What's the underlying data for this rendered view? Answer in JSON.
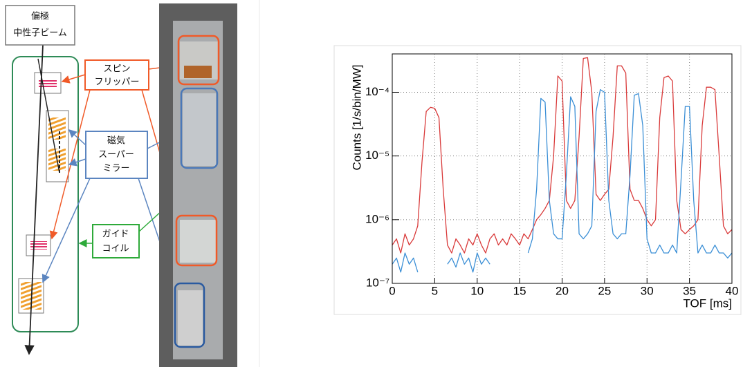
{
  "diagram": {
    "beam_label": [
      "偏極",
      "中性子ビーム"
    ],
    "spin_flipper": [
      "スピン",
      "フリッパー"
    ],
    "supermirror": [
      "磁気",
      "スーパー",
      "ミラー"
    ],
    "guide_coil": [
      "ガイド",
      "コイル"
    ]
  },
  "chart_data": {
    "type": "line",
    "x_label": "TOF [ms]",
    "y_label": "Counts [1/s/bin/MW]",
    "xlim": [
      0,
      40
    ],
    "xticks": [
      0,
      5,
      10,
      15,
      20,
      25,
      30,
      35,
      40
    ],
    "ylim": [
      1e-07,
      0.0004
    ],
    "log_y": true,
    "grid": true,
    "yticks": [
      {
        "value": 1e-07,
        "label": "10⁻⁷"
      },
      {
        "value": 1e-06,
        "label": "10⁻⁶"
      },
      {
        "value": 1e-05,
        "label": "10⁻⁵"
      },
      {
        "value": 0.0001,
        "label": "10⁻⁴"
      }
    ],
    "x": [
      0,
      0.5,
      1,
      1.5,
      2,
      2.5,
      3,
      3.5,
      4,
      4.5,
      5,
      5.5,
      6,
      6.5,
      7,
      7.5,
      8,
      8.5,
      9,
      9.5,
      10,
      10.5,
      11,
      11.5,
      12,
      12.5,
      13,
      13.5,
      14,
      14.5,
      15,
      15.5,
      16,
      16.5,
      17,
      17.5,
      18,
      18.5,
      19,
      19.5,
      20,
      20.5,
      21,
      21.5,
      22,
      22.5,
      23,
      23.5,
      24,
      24.5,
      25,
      25.5,
      26,
      26.5,
      27,
      27.5,
      28,
      28.5,
      29,
      29.5,
      30,
      30.5,
      31,
      31.5,
      32,
      32.5,
      33,
      33.5,
      34,
      34.5,
      35,
      35.5,
      36,
      36.5,
      37,
      37.5,
      38,
      38.5,
      39,
      39.5,
      40
    ],
    "series": [
      {
        "color": "#d93a3a",
        "values": [
          4e-07,
          5e-07,
          3e-07,
          6e-07,
          4e-07,
          5e-07,
          8e-07,
          8e-06,
          5e-05,
          5.8e-05,
          5.6e-05,
          4e-05,
          3e-06,
          4e-07,
          3e-07,
          5e-07,
          4e-07,
          3e-07,
          5e-07,
          4e-07,
          6e-07,
          4e-07,
          3e-07,
          5e-07,
          6e-07,
          4e-07,
          5e-07,
          4e-07,
          6e-07,
          5e-07,
          4e-07,
          6e-07,
          5e-07,
          7e-07,
          1e-06,
          1.2e-06,
          1.5e-06,
          2e-06,
          1e-05,
          0.00018,
          0.00015,
          2e-06,
          1.5e-06,
          2e-06,
          2e-05,
          0.00034,
          0.00035,
          0.0001,
          2.5e-06,
          2e-06,
          2.5e-06,
          3e-06,
          2e-05,
          0.00026,
          0.00026,
          0.0002,
          3e-06,
          2e-06,
          2e-06,
          1.5e-06,
          1e-06,
          8e-07,
          1e-06,
          4e-05,
          0.00017,
          0.00018,
          0.00015,
          2e-06,
          7e-07,
          6e-07,
          7e-07,
          8e-07,
          1e-06,
          3e-05,
          0.00012,
          0.00012,
          0.00011,
          1e-05,
          8e-07,
          6e-07,
          7e-07
        ]
      },
      {
        "color": "#3b8fd6",
        "values": [
          2e-07,
          2.5e-07,
          1.5e-07,
          3e-07,
          2e-07,
          2.5e-07,
          1.5e-07,
          null,
          null,
          null,
          null,
          null,
          null,
          2e-07,
          2.5e-07,
          1.8e-07,
          3e-07,
          2e-07,
          2.5e-07,
          1.5e-07,
          3e-07,
          2e-07,
          2.5e-07,
          2e-07,
          null,
          null,
          null,
          null,
          null,
          null,
          null,
          null,
          3e-07,
          5e-07,
          3e-06,
          8e-05,
          7e-05,
          2e-06,
          6e-07,
          5e-07,
          5e-07,
          5e-06,
          8.5e-05,
          6e-05,
          6e-07,
          5e-07,
          6e-07,
          8e-07,
          5e-05,
          0.00011,
          0.0001,
          2e-06,
          6e-07,
          5e-07,
          6e-07,
          6e-07,
          5e-06,
          9e-05,
          9.5e-05,
          3e-05,
          5e-07,
          3e-07,
          3e-07,
          4e-07,
          3e-07,
          3e-07,
          4e-07,
          3e-07,
          4e-06,
          6e-05,
          6e-05,
          2e-06,
          3e-07,
          4e-07,
          3e-07,
          3e-07,
          4e-07,
          3e-07,
          3e-07,
          2.5e-07,
          3e-07
        ]
      }
    ]
  }
}
